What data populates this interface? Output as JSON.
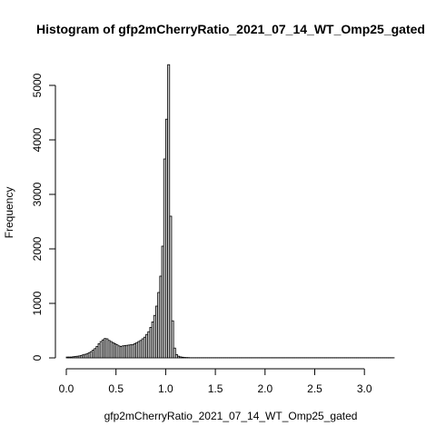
{
  "chart_data": {
    "type": "bar",
    "title": "Histogram of gfp2mCherryRatio_2021_07_14_WT_Omp25_gated",
    "xlabel": "gfp2mCherryRatio_2021_07_14_WT_Omp25_gated",
    "ylabel": "Frequency",
    "xlim": [
      0.0,
      3.3
    ],
    "ylim": [
      0,
      5400
    ],
    "bin_width": 0.02,
    "x_ticks": [
      "0.0",
      "0.5",
      "1.0",
      "1.5",
      "2.0",
      "2.5",
      "3.0"
    ],
    "x_tick_values": [
      0.0,
      0.5,
      1.0,
      1.5,
      2.0,
      2.5,
      3.0
    ],
    "y_ticks": [
      "0",
      "1000",
      "2000",
      "3000",
      "4000",
      "5000"
    ],
    "y_tick_values": [
      0,
      1000,
      2000,
      3000,
      4000,
      5000
    ],
    "grid": false,
    "colors": {
      "bar_fill": "#d3d3d3",
      "bar_stroke": "#000000"
    },
    "bins": [
      {
        "x0": 0.0,
        "count": 15
      },
      {
        "x0": 0.02,
        "count": 15
      },
      {
        "x0": 0.04,
        "count": 15
      },
      {
        "x0": 0.06,
        "count": 20
      },
      {
        "x0": 0.08,
        "count": 25
      },
      {
        "x0": 0.1,
        "count": 30
      },
      {
        "x0": 0.12,
        "count": 35
      },
      {
        "x0": 0.14,
        "count": 45
      },
      {
        "x0": 0.16,
        "count": 55
      },
      {
        "x0": 0.18,
        "count": 65
      },
      {
        "x0": 0.2,
        "count": 75
      },
      {
        "x0": 0.22,
        "count": 95
      },
      {
        "x0": 0.24,
        "count": 115
      },
      {
        "x0": 0.26,
        "count": 140
      },
      {
        "x0": 0.28,
        "count": 170
      },
      {
        "x0": 0.3,
        "count": 210
      },
      {
        "x0": 0.32,
        "count": 260
      },
      {
        "x0": 0.34,
        "count": 300
      },
      {
        "x0": 0.36,
        "count": 330
      },
      {
        "x0": 0.38,
        "count": 355
      },
      {
        "x0": 0.4,
        "count": 350
      },
      {
        "x0": 0.42,
        "count": 320
      },
      {
        "x0": 0.44,
        "count": 300
      },
      {
        "x0": 0.46,
        "count": 280
      },
      {
        "x0": 0.48,
        "count": 260
      },
      {
        "x0": 0.5,
        "count": 240
      },
      {
        "x0": 0.52,
        "count": 220
      },
      {
        "x0": 0.54,
        "count": 210
      },
      {
        "x0": 0.56,
        "count": 220
      },
      {
        "x0": 0.58,
        "count": 225
      },
      {
        "x0": 0.6,
        "count": 230
      },
      {
        "x0": 0.62,
        "count": 235
      },
      {
        "x0": 0.64,
        "count": 240
      },
      {
        "x0": 0.66,
        "count": 245
      },
      {
        "x0": 0.68,
        "count": 260
      },
      {
        "x0": 0.7,
        "count": 280
      },
      {
        "x0": 0.72,
        "count": 300
      },
      {
        "x0": 0.74,
        "count": 320
      },
      {
        "x0": 0.76,
        "count": 350
      },
      {
        "x0": 0.78,
        "count": 380
      },
      {
        "x0": 0.8,
        "count": 430
      },
      {
        "x0": 0.82,
        "count": 480
      },
      {
        "x0": 0.84,
        "count": 560
      },
      {
        "x0": 0.86,
        "count": 660
      },
      {
        "x0": 0.88,
        "count": 780
      },
      {
        "x0": 0.9,
        "count": 950
      },
      {
        "x0": 0.92,
        "count": 1200
      },
      {
        "x0": 0.94,
        "count": 1500
      },
      {
        "x0": 0.96,
        "count": 2050
      },
      {
        "x0": 0.98,
        "count": 3650
      },
      {
        "x0": 1.0,
        "count": 4380
      },
      {
        "x0": 1.02,
        "count": 5380
      },
      {
        "x0": 1.04,
        "count": 2600
      },
      {
        "x0": 1.06,
        "count": 680
      },
      {
        "x0": 1.08,
        "count": 180
      },
      {
        "x0": 1.1,
        "count": 60
      },
      {
        "x0": 1.12,
        "count": 30
      },
      {
        "x0": 1.14,
        "count": 18
      },
      {
        "x0": 1.16,
        "count": 12
      },
      {
        "x0": 1.18,
        "count": 8
      },
      {
        "x0": 1.2,
        "count": 6
      },
      {
        "x0": 1.22,
        "count": 5
      }
    ],
    "tail": {
      "from": 1.24,
      "to": 3.3,
      "count": 3
    }
  }
}
